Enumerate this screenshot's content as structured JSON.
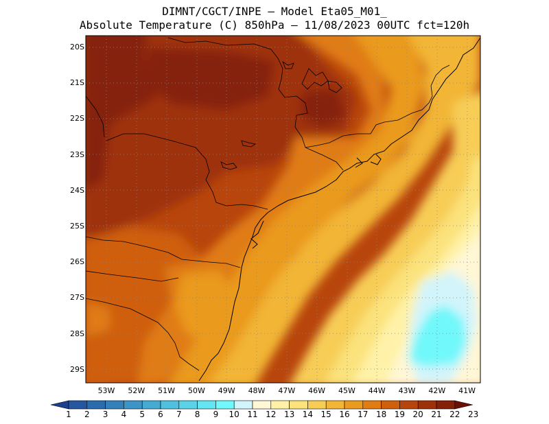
{
  "title_line1": "DIMNT/CGCT/INPE –  Model Eta05_M01_",
  "title_line2": "Absolute Temperature (C) 850hPa –  11/08/2023 00UTC fct=120h",
  "lat_labels": [
    "20S",
    "21S",
    "22S",
    "23S",
    "24S",
    "25S",
    "26S",
    "27S",
    "28S",
    "29S"
  ],
  "lon_labels": [
    "53W",
    "52W",
    "51W",
    "50W",
    "49W",
    "48W",
    "47W",
    "46W",
    "45W",
    "44W",
    "43W",
    "42W",
    "41W"
  ],
  "colorbar": {
    "labels": [
      "1",
      "2",
      "3",
      "4",
      "5",
      "6",
      "7",
      "8",
      "9",
      "10",
      "11",
      "12",
      "13",
      "14",
      "15",
      "16",
      "17",
      "18",
      "19",
      "20",
      "21",
      "22",
      "23"
    ],
    "colors": [
      "#1c3f8f",
      "#24579f",
      "#2b6cae",
      "#3380bb",
      "#3b95c7",
      "#45abd3",
      "#4fc0df",
      "#5ad3e8",
      "#64e6f2",
      "#70f8fb",
      "#d2f4fb",
      "#fff7d6",
      "#fff2a8",
      "#fbe27b",
      "#f7cd56",
      "#f2b535",
      "#ea9a1f",
      "#e07c12",
      "#cf5e0d",
      "#b8450c",
      "#9e300c",
      "#852008",
      "#6a1006"
    ]
  }
}
